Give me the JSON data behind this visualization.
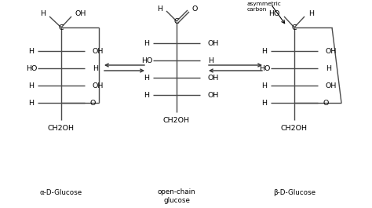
{
  "bg_color": "#ffffff",
  "line_color": "#4a4a4a",
  "text_color": "#000000",
  "figsize": [
    4.74,
    2.65
  ],
  "dpi": 100,
  "alpha_label": "α-D-Glucose",
  "open_label": "open-chain\nglucose",
  "beta_label": "β-D-Glucose",
  "ch2oh": "CH2OH",
  "new_asym": "New\nasymmetric\ncarbon"
}
